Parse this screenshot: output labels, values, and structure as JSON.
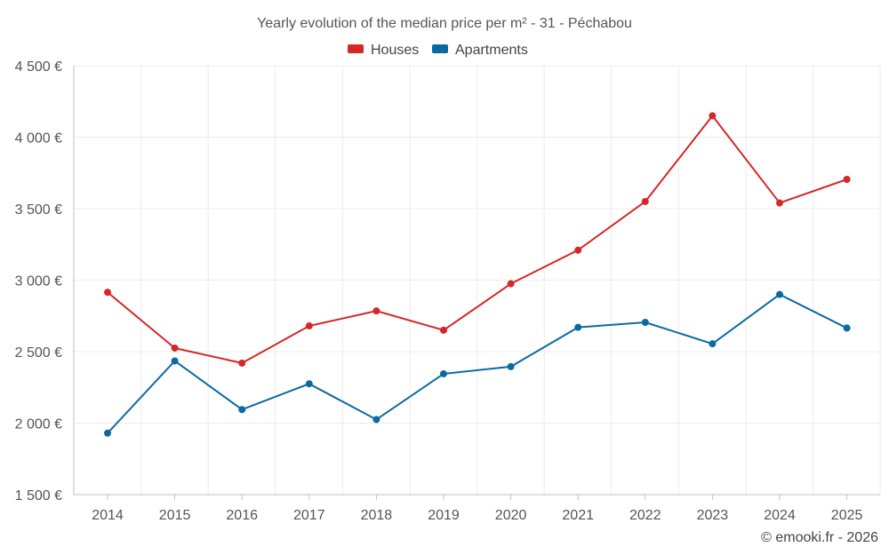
{
  "chart_data": {
    "type": "line",
    "title": "Yearly evolution of the median price per m² - 31 - Péchabou",
    "x": [
      "2014",
      "2015",
      "2016",
      "2017",
      "2018",
      "2019",
      "2020",
      "2021",
      "2022",
      "2023",
      "2024",
      "2025"
    ],
    "ylim": [
      1500,
      4500
    ],
    "yticks": [
      1500,
      2000,
      2500,
      3000,
      3500,
      4000,
      4500
    ],
    "ytick_labels": [
      "1 500 €",
      "2 000 €",
      "2 500 €",
      "3 000 €",
      "3 500 €",
      "4 000 €",
      "4 500 €"
    ],
    "series": [
      {
        "name": "Houses",
        "color": "#d62728",
        "values": [
          2915,
          2525,
          2420,
          2680,
          2785,
          2650,
          2975,
          3210,
          3550,
          4150,
          3540,
          3705
        ]
      },
      {
        "name": "Apartments",
        "color": "#1f77b4",
        "values": [
          1930,
          2435,
          2095,
          2275,
          2025,
          2345,
          2395,
          2670,
          2705,
          2555,
          2900,
          2665
        ]
      }
    ],
    "legend_position": "top-center",
    "grid": true,
    "credit": "© emooki.fr - 2026"
  }
}
